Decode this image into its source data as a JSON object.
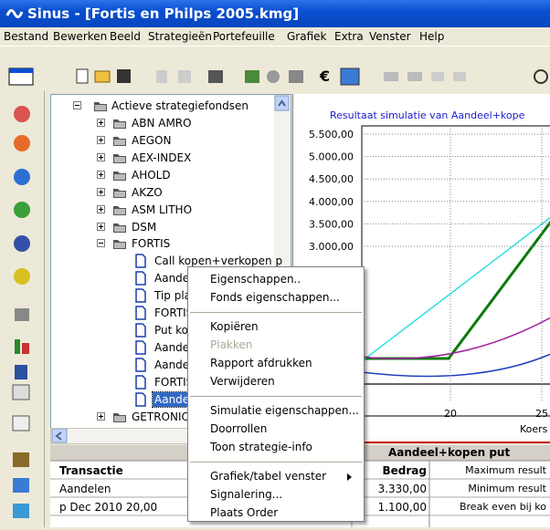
{
  "window": {
    "title": "Sinus - [Fortis en Philps 2005.kmg]"
  },
  "menu": [
    "Bestand",
    "Bewerken",
    "Beeld",
    "Strategieën",
    "Portefeuille",
    "Grafiek",
    "Extra",
    "Venster",
    "Help"
  ],
  "tree": {
    "root": "Actieve strategiefondsen",
    "items": [
      {
        "label": "ABN AMRO",
        "level": 1
      },
      {
        "label": "AEGON",
        "level": 1
      },
      {
        "label": "AEX-INDEX",
        "level": 1
      },
      {
        "label": "AHOLD",
        "level": 1
      },
      {
        "label": "AKZO",
        "level": 1
      },
      {
        "label": "ASM LITHO",
        "level": 1
      },
      {
        "label": "DSM",
        "level": 1
      },
      {
        "label": "FORTIS",
        "level": 1
      },
      {
        "label": "Call kopen+verkopen p",
        "level": 2
      },
      {
        "label": "Aandee",
        "level": 2
      },
      {
        "label": "Tip plas",
        "level": 2
      },
      {
        "label": "FORTIS",
        "level": 2
      },
      {
        "label": "Put kop",
        "level": 2
      },
      {
        "label": "Aandee",
        "level": 2
      },
      {
        "label": "Aandee",
        "level": 2
      },
      {
        "label": "FORTIS",
        "level": 2
      },
      {
        "label": "Aandee",
        "level": 2
      },
      {
        "label": "GETRONIC",
        "level": 1
      }
    ]
  },
  "chart": {
    "title": "Resultaat simulatie van Aandeel+kope",
    "yticks": [
      "5.500,00",
      "5.000,00",
      "4.500,00",
      "4.000,00",
      "3.500,00",
      "3.000,00"
    ],
    "xticks": [
      "20",
      "25"
    ],
    "xlabel": "Koers"
  },
  "table": {
    "title": "Aandeel+kopen put",
    "headers": [
      "Transactie",
      "Bedrag"
    ],
    "rows": [
      [
        "Aandelen",
        "3.330,00"
      ],
      [
        "p Dec 2010 20,00",
        "1.100,00"
      ]
    ],
    "side": [
      "Maximum result",
      "Minimum result",
      "Break even bij ko"
    ]
  },
  "context_menu": [
    {
      "label": "Eigenschappen.."
    },
    {
      "label": "Fonds eigenschappen..."
    },
    {
      "separator": true
    },
    {
      "label": "Kopiëren"
    },
    {
      "label": "Plakken",
      "disabled": true
    },
    {
      "label": "Rapport afdrukken"
    },
    {
      "label": "Verwijderen"
    },
    {
      "separator": true
    },
    {
      "label": "Simulatie eigenschappen..."
    },
    {
      "label": "Doorrollen"
    },
    {
      "label": "Toon strategie-info"
    },
    {
      "separator": true
    },
    {
      "label": "Grafiek/tabel venster",
      "submenu": true
    },
    {
      "label": "Signalering..."
    },
    {
      "label": "Plaats Order"
    }
  ]
}
